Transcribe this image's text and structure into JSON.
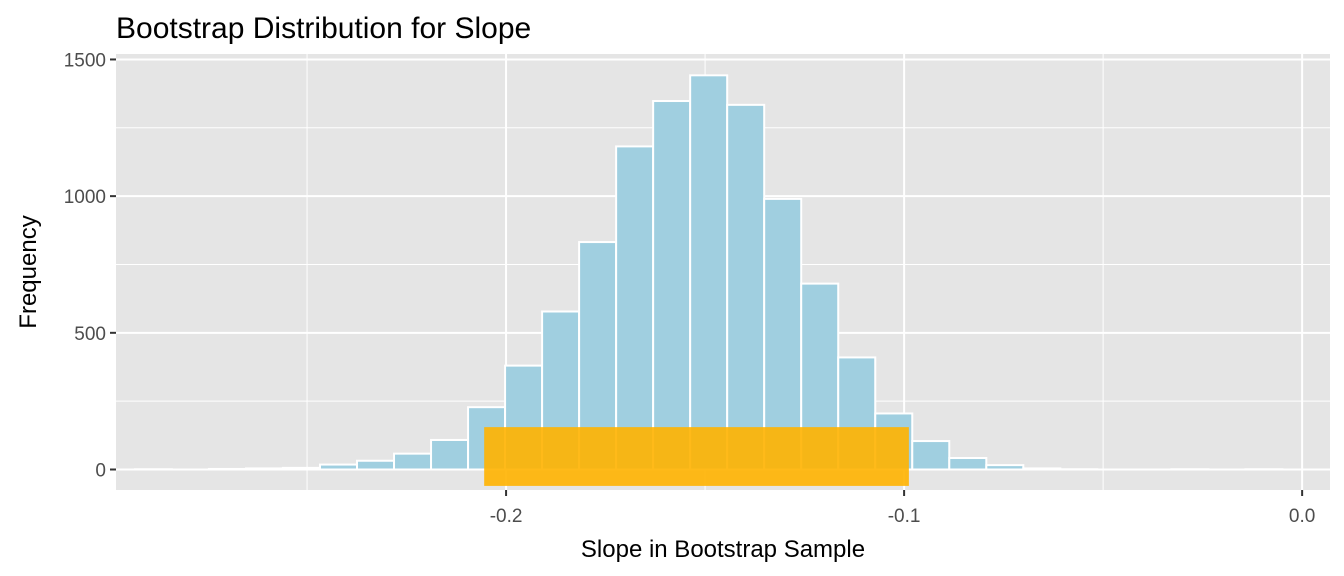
{
  "chart_data": {
    "type": "bar",
    "title": "Bootstrap Distribution for Slope",
    "xlabel": "Slope in Bootstrap Sample",
    "ylabel": "Frequency",
    "xlim": [
      -0.298,
      0.007
    ],
    "ylim": [
      -75,
      1520
    ],
    "x_ticks": [
      {
        "value": -0.2,
        "label": "-0.2"
      },
      {
        "value": -0.1,
        "label": "-0.1"
      },
      {
        "value": 0.0,
        "label": "0.0"
      }
    ],
    "x_minor": [
      -0.25,
      -0.15,
      -0.05
    ],
    "y_ticks": [
      {
        "value": 0,
        "label": "0"
      },
      {
        "value": 500,
        "label": "500"
      },
      {
        "value": 1000,
        "label": "1000"
      },
      {
        "value": 1500,
        "label": "1500"
      }
    ],
    "y_minor": [
      250,
      750,
      1250
    ],
    "grid": true,
    "bin_width": 0.0093,
    "bars": [
      {
        "x": -0.2886,
        "count": 1
      },
      {
        "x": -0.2793,
        "count": 0
      },
      {
        "x": -0.27,
        "count": 2
      },
      {
        "x": -0.2607,
        "count": 4
      },
      {
        "x": -0.2514,
        "count": 6
      },
      {
        "x": -0.2421,
        "count": 18
      },
      {
        "x": -0.2328,
        "count": 32
      },
      {
        "x": -0.2235,
        "count": 58
      },
      {
        "x": -0.2142,
        "count": 108
      },
      {
        "x": -0.2049,
        "count": 228
      },
      {
        "x": -0.1956,
        "count": 380
      },
      {
        "x": -0.1863,
        "count": 578
      },
      {
        "x": -0.177,
        "count": 832
      },
      {
        "x": -0.1677,
        "count": 1182
      },
      {
        "x": -0.1584,
        "count": 1348
      },
      {
        "x": -0.1491,
        "count": 1442
      },
      {
        "x": -0.1398,
        "count": 1334
      },
      {
        "x": -0.1305,
        "count": 990
      },
      {
        "x": -0.1212,
        "count": 680
      },
      {
        "x": -0.1119,
        "count": 410
      },
      {
        "x": -0.1026,
        "count": 205
      },
      {
        "x": -0.0933,
        "count": 104
      },
      {
        "x": -0.084,
        "count": 42
      },
      {
        "x": -0.0747,
        "count": 16
      },
      {
        "x": -0.0654,
        "count": 4
      },
      {
        "x": -0.0561,
        "count": 1
      },
      {
        "x": -0.0468,
        "count": 0
      },
      {
        "x": -0.0375,
        "count": 0
      },
      {
        "x": -0.0282,
        "count": 1
      },
      {
        "x": -0.0189,
        "count": 0
      },
      {
        "x": -0.0096,
        "count": 1
      },
      {
        "x": -0.0003,
        "count": 0
      }
    ],
    "interval": {
      "lower": -0.2055,
      "upper": -0.0988,
      "y_bottom": -60,
      "y_top": 155
    },
    "colors": {
      "panel": "#e5e5e5",
      "grid": "#ffffff",
      "bar_fill": "#a0cfe0",
      "bar_outline": "#ffffff",
      "interval_fill": "#ffb300",
      "interval_opacity": 0.9
    }
  }
}
